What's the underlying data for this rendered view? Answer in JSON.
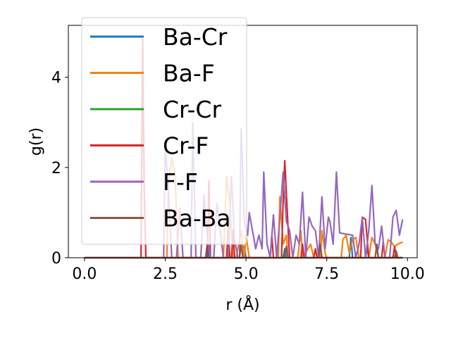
{
  "chart_data": {
    "type": "line",
    "title": "",
    "xlabel": "r (Å)",
    "ylabel": "g(r)",
    "xlim": [
      -0.5,
      10.3
    ],
    "ylim": [
      0,
      5.15
    ],
    "xticks": [
      0.0,
      2.5,
      5.0,
      7.5,
      10.0
    ],
    "xtick_labels": [
      "0.0",
      "2.5",
      "5.0",
      "7.5",
      "10.0"
    ],
    "yticks": [
      0,
      2,
      4
    ],
    "ytick_labels": [
      "0",
      "2",
      "4"
    ],
    "grid": false,
    "legend_position": "top-left",
    "series": [
      {
        "name": "Ba-Cr",
        "color": "#1f77b4",
        "points": [
          [
            0,
            0
          ],
          [
            3.75,
            0
          ],
          [
            3.8,
            0.3
          ],
          [
            3.85,
            0
          ],
          [
            4.9,
            0
          ],
          [
            4.95,
            0.25
          ],
          [
            5.0,
            0
          ],
          [
            6.15,
            0
          ],
          [
            6.2,
            0.2
          ],
          [
            6.25,
            0
          ],
          [
            7.25,
            0
          ],
          [
            7.3,
            0.28
          ],
          [
            7.35,
            0
          ],
          [
            8.2,
            0
          ],
          [
            8.25,
            0.45
          ],
          [
            8.3,
            0
          ],
          [
            8.7,
            0
          ],
          [
            8.75,
            0.22
          ],
          [
            8.8,
            0
          ],
          [
            9.85,
            0
          ]
        ]
      },
      {
        "name": "Ba-F",
        "color": "#ff7f0e",
        "points": [
          [
            0,
            0
          ],
          [
            2.55,
            0
          ],
          [
            2.6,
            1.7
          ],
          [
            2.7,
            2.2
          ],
          [
            2.8,
            1.9
          ],
          [
            2.9,
            0
          ],
          [
            4.3,
            0
          ],
          [
            4.4,
            1.8
          ],
          [
            4.5,
            1.2
          ],
          [
            4.6,
            0
          ],
          [
            4.7,
            0
          ],
          [
            4.85,
            0.6
          ],
          [
            4.95,
            0
          ],
          [
            5.0,
            0.5
          ],
          [
            5.1,
            0
          ],
          [
            6.0,
            0
          ],
          [
            6.05,
            1.35
          ],
          [
            6.15,
            0.3
          ],
          [
            6.25,
            0.5
          ],
          [
            6.3,
            0
          ],
          [
            6.6,
            0
          ],
          [
            6.7,
            0.6
          ],
          [
            6.75,
            0
          ],
          [
            7.0,
            0.3
          ],
          [
            7.1,
            0
          ],
          [
            7.3,
            0
          ],
          [
            7.35,
            0.6
          ],
          [
            7.45,
            0.1
          ],
          [
            7.5,
            0
          ],
          [
            7.95,
            0
          ],
          [
            8.0,
            0.4
          ],
          [
            8.1,
            0.5
          ],
          [
            8.2,
            0.1
          ],
          [
            8.3,
            0.4
          ],
          [
            8.4,
            0.45
          ],
          [
            8.5,
            0
          ],
          [
            8.8,
            0
          ],
          [
            8.9,
            0.45
          ],
          [
            9.0,
            0.3
          ],
          [
            9.1,
            0
          ],
          [
            9.3,
            0
          ],
          [
            9.4,
            0.4
          ],
          [
            9.5,
            0.35
          ],
          [
            9.6,
            0.25
          ],
          [
            9.7,
            0.3
          ],
          [
            9.85,
            0.35
          ]
        ]
      },
      {
        "name": "Cr-Cr",
        "color": "#2ca02c",
        "points": [
          [
            0,
            0
          ],
          [
            9.85,
            0
          ]
        ]
      },
      {
        "name": "Cr-F",
        "color": "#d62728",
        "points": [
          [
            0,
            0
          ],
          [
            1.75,
            0
          ],
          [
            1.8,
            4.85
          ],
          [
            1.85,
            1.5
          ],
          [
            1.9,
            0
          ],
          [
            3.8,
            0
          ],
          [
            3.85,
            1.7
          ],
          [
            3.9,
            0
          ],
          [
            4.4,
            0
          ],
          [
            4.45,
            0.7
          ],
          [
            4.5,
            0
          ],
          [
            4.55,
            0
          ],
          [
            4.6,
            0.6
          ],
          [
            4.65,
            0
          ],
          [
            5.75,
            0
          ],
          [
            5.8,
            0.5
          ],
          [
            5.85,
            0
          ],
          [
            6.1,
            0
          ],
          [
            6.15,
            1.25
          ],
          [
            6.2,
            2.15
          ],
          [
            6.3,
            0.7
          ],
          [
            6.35,
            0
          ],
          [
            6.7,
            0
          ],
          [
            6.75,
            0.3
          ],
          [
            6.8,
            0
          ],
          [
            7.1,
            0
          ],
          [
            7.15,
            0.2
          ],
          [
            7.2,
            0
          ],
          [
            8.55,
            0
          ],
          [
            8.6,
            0.9
          ],
          [
            8.7,
            0.85
          ],
          [
            8.8,
            0
          ],
          [
            9.2,
            0
          ],
          [
            9.25,
            0.35
          ],
          [
            9.3,
            0
          ],
          [
            9.55,
            0
          ],
          [
            9.6,
            0.25
          ],
          [
            9.65,
            0
          ],
          [
            9.85,
            0
          ]
        ]
      },
      {
        "name": "F-F",
        "color": "#9467bd",
        "points": [
          [
            0,
            0
          ],
          [
            2.45,
            0
          ],
          [
            2.5,
            2.5
          ],
          [
            2.6,
            1.5
          ],
          [
            2.7,
            0
          ],
          [
            2.85,
            0
          ],
          [
            2.95,
            1.1
          ],
          [
            3.05,
            0
          ],
          [
            3.3,
            0
          ],
          [
            3.35,
            3.0
          ],
          [
            3.45,
            0
          ],
          [
            3.6,
            0
          ],
          [
            3.7,
            1.4
          ],
          [
            3.8,
            0.5
          ],
          [
            3.9,
            0
          ],
          [
            4.0,
            0
          ],
          [
            4.1,
            1.2
          ],
          [
            4.2,
            0.6
          ],
          [
            4.3,
            0
          ],
          [
            4.45,
            0
          ],
          [
            4.55,
            1.8
          ],
          [
            4.65,
            0.4
          ],
          [
            4.75,
            0
          ],
          [
            4.8,
            0
          ],
          [
            4.85,
            2.85
          ],
          [
            4.95,
            0.8
          ],
          [
            5.05,
            0.5
          ],
          [
            5.1,
            1.0
          ],
          [
            5.2,
            0.6
          ],
          [
            5.3,
            0.2
          ],
          [
            5.4,
            0.5
          ],
          [
            5.5,
            0.2
          ],
          [
            5.55,
            1.9
          ],
          [
            5.65,
            0.3
          ],
          [
            5.75,
            0
          ],
          [
            5.85,
            0.95
          ],
          [
            5.95,
            0
          ],
          [
            6.05,
            0.9
          ],
          [
            6.15,
            1.9
          ],
          [
            6.25,
            0.8
          ],
          [
            6.35,
            0.6
          ],
          [
            6.45,
            0
          ],
          [
            6.55,
            0.5
          ],
          [
            6.65,
            0.3
          ],
          [
            6.75,
            1.45
          ],
          [
            6.85,
            0
          ],
          [
            6.95,
            0.9
          ],
          [
            7.05,
            0.7
          ],
          [
            7.15,
            0.6
          ],
          [
            7.25,
            0
          ],
          [
            7.35,
            1.35
          ],
          [
            7.45,
            0.2
          ],
          [
            7.55,
            0.9
          ],
          [
            7.6,
            0.8
          ],
          [
            7.7,
            0.3
          ],
          [
            7.8,
            1.9
          ],
          [
            7.9,
            0.55
          ],
          [
            8.3,
            0.5
          ],
          [
            8.4,
            0
          ],
          [
            8.5,
            0.3
          ],
          [
            8.6,
            0.9
          ],
          [
            8.7,
            0
          ],
          [
            8.8,
            0.6
          ],
          [
            8.9,
            1.6
          ],
          [
            9.0,
            0.3
          ],
          [
            9.1,
            0.2
          ],
          [
            9.2,
            0.7
          ],
          [
            9.3,
            0
          ],
          [
            9.45,
            0
          ],
          [
            9.55,
            0.9
          ],
          [
            9.65,
            1.05
          ],
          [
            9.75,
            0.5
          ],
          [
            9.85,
            0.85
          ]
        ]
      },
      {
        "name": "Ba-Ba",
        "color": "#8c564b",
        "points": [
          [
            0,
            0
          ],
          [
            4.8,
            0
          ],
          [
            4.85,
            0.3
          ],
          [
            4.9,
            0
          ],
          [
            6.2,
            0
          ],
          [
            6.25,
            0.25
          ],
          [
            6.3,
            0
          ],
          [
            7.25,
            0
          ],
          [
            7.3,
            0.3
          ],
          [
            7.35,
            0
          ],
          [
            9.0,
            0
          ],
          [
            9.05,
            0.3
          ],
          [
            9.1,
            0
          ],
          [
            9.6,
            0
          ],
          [
            9.65,
            0.15
          ],
          [
            9.7,
            0
          ],
          [
            9.85,
            0
          ]
        ]
      }
    ]
  }
}
